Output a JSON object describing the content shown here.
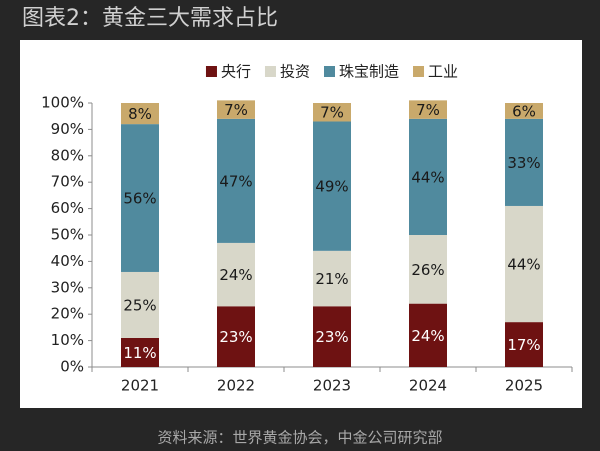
{
  "chart_data": {
    "type": "stacked_bar",
    "title": "图表2：黄金三大需求占比",
    "source": "资料来源：世界黄金协会，中金公司研究部",
    "categories": [
      "2021",
      "2022",
      "2023",
      "2024",
      "2025"
    ],
    "series": [
      {
        "name": "央行",
        "color": "#6e1212",
        "values": [
          11,
          23,
          23,
          24,
          17
        ],
        "value_labels": [
          "11%",
          "23%",
          "23%",
          "24%",
          "17%"
        ]
      },
      {
        "name": "投资",
        "color": "#d8d7c9",
        "values": [
          25,
          24,
          21,
          26,
          44
        ],
        "value_labels": [
          "25%",
          "24%",
          "21%",
          "26%",
          "44%"
        ]
      },
      {
        "name": "珠宝制造",
        "color": "#508a9e",
        "values": [
          56,
          47,
          49,
          44,
          33
        ],
        "value_labels": [
          "56%",
          "47%",
          "49%",
          "44%",
          "33%"
        ]
      },
      {
        "name": "工业",
        "color": "#c9a96b",
        "values": [
          8,
          7,
          7,
          7,
          6
        ],
        "value_labels": [
          "8%",
          "7%",
          "7%",
          "7%",
          "6%"
        ]
      }
    ],
    "ylim": [
      0,
      100
    ],
    "yticks": [
      {
        "value": 0,
        "label": "0%"
      },
      {
        "value": 10,
        "label": "10%"
      },
      {
        "value": 20,
        "label": "20%"
      },
      {
        "value": 30,
        "label": "30%"
      },
      {
        "value": 40,
        "label": "40%"
      },
      {
        "value": 50,
        "label": "50%"
      },
      {
        "value": 60,
        "label": "60%"
      },
      {
        "value": 70,
        "label": "70%"
      },
      {
        "value": 80,
        "label": "80%"
      },
      {
        "value": 90,
        "label": "90%"
      },
      {
        "value": 100,
        "label": "100%"
      }
    ],
    "grid": false,
    "legend": "top"
  }
}
